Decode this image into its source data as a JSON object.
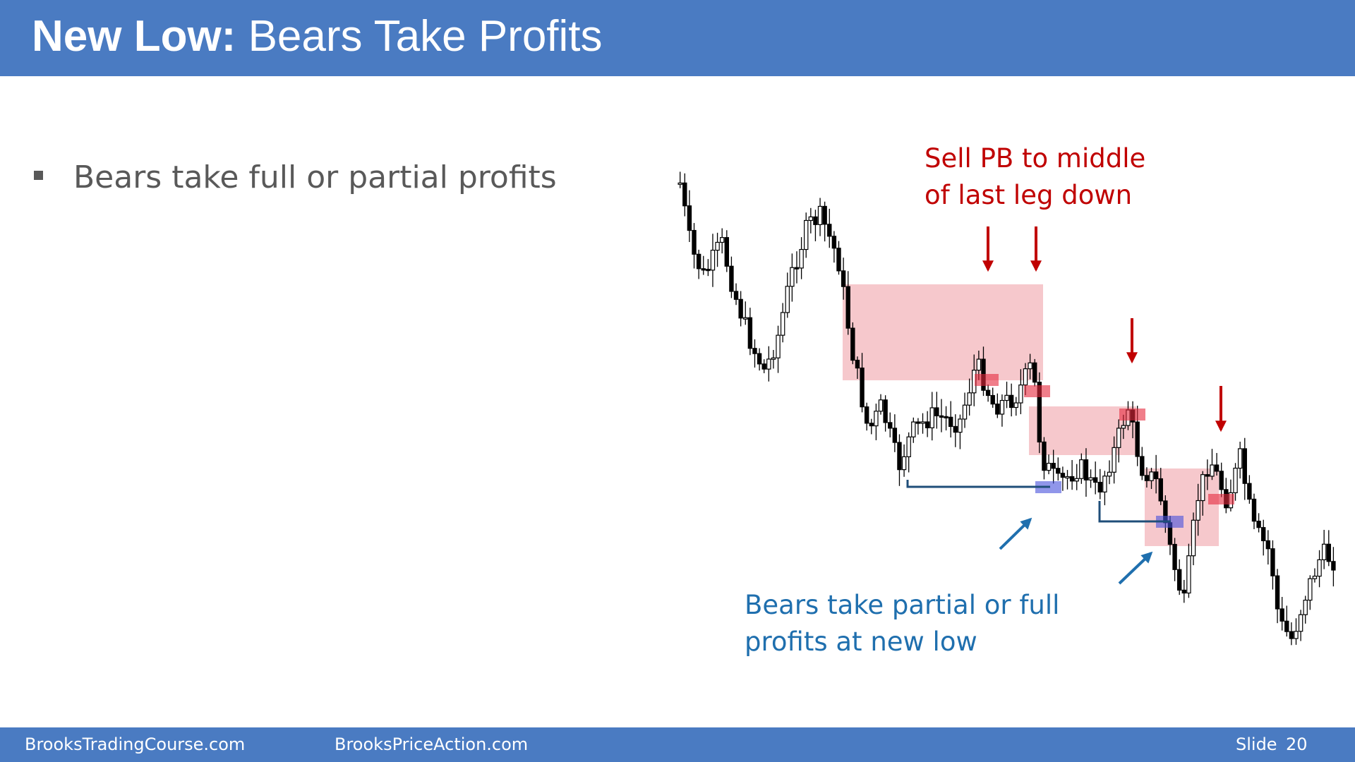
{
  "header": {
    "title_bold": "New Low:",
    "title_rest": "Bears Take Profits"
  },
  "bullets": [
    "Bears take full or partial profits"
  ],
  "annotations": {
    "sell_pullback": [
      "Sell PB to middle",
      "of last leg down"
    ],
    "take_profits": [
      "Bears take partial or full",
      "profits at new low"
    ]
  },
  "footer": {
    "left": "BrooksTradingCourse.com",
    "center": "BrooksPriceAction.com",
    "slide_label": "Slide",
    "slide_number": 20
  }
}
